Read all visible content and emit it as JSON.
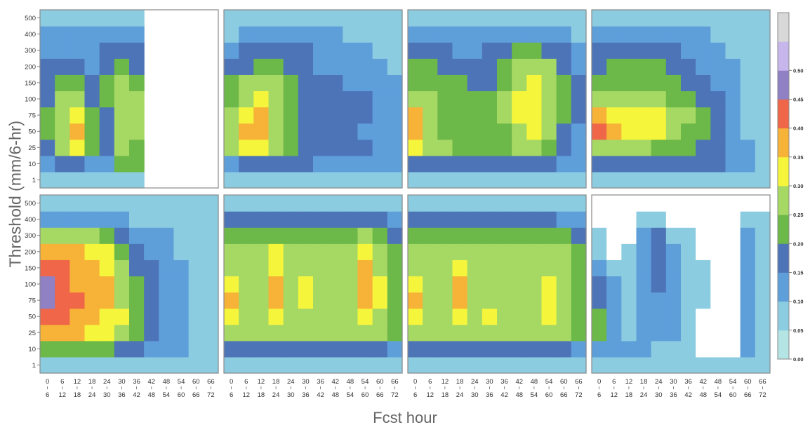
{
  "chart_data": {
    "type": "heatmap",
    "ylabel": "Threshold (mm/6-hr)",
    "xlabel": "Fcst hour",
    "y_ticks": [
      "1",
      "10",
      "25",
      "50",
      "75",
      "100",
      "150",
      "200",
      "300",
      "400",
      "500"
    ],
    "x_ticks_top": [
      "0",
      "6",
      "12",
      "18",
      "24",
      "30",
      "36",
      "42",
      "48",
      "54",
      "60",
      "66"
    ],
    "x_ticks_bottom": [
      "6",
      "12",
      "18",
      "24",
      "30",
      "36",
      "42",
      "48",
      "54",
      "60",
      "66",
      "72"
    ],
    "colorbar": {
      "ticks": [
        "0.00",
        "0.05",
        "0.10",
        "0.15",
        "0.20",
        "0.25",
        "0.30",
        "0.35",
        "0.40",
        "0.45",
        "0.50"
      ],
      "colors": [
        "#b4e4e4",
        "#8ccce0",
        "#5e9fda",
        "#4e74b8",
        "#6cb848",
        "#a6d864",
        "#f5f53c",
        "#f7b238",
        "#ef6648",
        "#9080c4",
        "#c6b6ec",
        "#d8d8d8"
      ]
    },
    "grid": "panels 4 columns x 2 rows",
    "panels": [
      {
        "row": 0,
        "col": 0,
        "cut_from_col": 7,
        "values": [
          [
            1,
            1,
            1,
            1,
            1,
            1,
            1,
            1,
            0,
            0,
            0,
            0
          ],
          [
            2,
            3,
            3,
            2,
            2,
            4,
            4,
            3,
            0,
            0,
            0,
            0
          ],
          [
            3,
            5,
            6,
            4,
            3,
            5,
            4,
            3,
            0,
            0,
            0,
            0
          ],
          [
            4,
            5,
            7,
            4,
            3,
            5,
            5,
            4,
            0,
            0,
            0,
            0
          ],
          [
            4,
            5,
            6,
            4,
            3,
            5,
            5,
            4,
            0,
            0,
            0,
            0
          ],
          [
            3,
            5,
            5,
            3,
            4,
            5,
            5,
            3,
            0,
            0,
            0,
            0
          ],
          [
            3,
            4,
            4,
            3,
            4,
            5,
            4,
            3,
            0,
            0,
            0,
            0
          ],
          [
            3,
            3,
            3,
            2,
            3,
            4,
            3,
            3,
            0,
            0,
            0,
            0
          ],
          [
            2,
            2,
            2,
            2,
            3,
            3,
            3,
            2,
            0,
            0,
            0,
            0
          ],
          [
            2,
            2,
            2,
            2,
            2,
            2,
            2,
            2,
            0,
            0,
            0,
            0
          ],
          [
            1,
            1,
            1,
            1,
            1,
            1,
            1,
            1,
            0,
            0,
            0,
            0
          ]
        ]
      },
      {
        "row": 0,
        "col": 1,
        "values": [
          [
            1,
            1,
            1,
            1,
            1,
            1,
            1,
            1,
            1,
            1,
            1,
            1
          ],
          [
            2,
            3,
            3,
            3,
            3,
            3,
            2,
            2,
            2,
            2,
            2,
            2
          ],
          [
            5,
            6,
            6,
            5,
            4,
            3,
            3,
            3,
            3,
            3,
            2,
            2
          ],
          [
            5,
            7,
            7,
            5,
            4,
            3,
            3,
            3,
            3,
            2,
            2,
            2
          ],
          [
            5,
            6,
            7,
            5,
            4,
            3,
            3,
            3,
            3,
            3,
            2,
            2
          ],
          [
            4,
            5,
            6,
            5,
            4,
            3,
            3,
            3,
            3,
            3,
            2,
            2
          ],
          [
            4,
            5,
            5,
            5,
            4,
            3,
            3,
            3,
            2,
            2,
            2,
            2
          ],
          [
            3,
            3,
            4,
            4,
            3,
            3,
            2,
            2,
            2,
            2,
            2,
            1
          ],
          [
            2,
            3,
            3,
            3,
            3,
            3,
            2,
            2,
            2,
            2,
            1,
            1
          ],
          [
            1,
            2,
            2,
            2,
            2,
            2,
            2,
            2,
            1,
            1,
            1,
            1
          ],
          [
            1,
            1,
            1,
            1,
            1,
            1,
            1,
            1,
            1,
            1,
            1,
            1
          ]
        ]
      },
      {
        "row": 0,
        "col": 2,
        "values": [
          [
            1,
            1,
            1,
            1,
            1,
            1,
            1,
            1,
            1,
            1,
            1,
            1
          ],
          [
            3,
            3,
            3,
            3,
            3,
            3,
            3,
            3,
            3,
            3,
            2,
            2
          ],
          [
            6,
            5,
            5,
            4,
            4,
            4,
            4,
            5,
            5,
            4,
            3,
            2
          ],
          [
            7,
            5,
            4,
            4,
            4,
            4,
            4,
            5,
            6,
            5,
            3,
            2
          ],
          [
            7,
            5,
            4,
            4,
            4,
            4,
            5,
            6,
            6,
            5,
            4,
            3
          ],
          [
            5,
            5,
            4,
            4,
            4,
            4,
            5,
            6,
            6,
            5,
            4,
            3
          ],
          [
            4,
            4,
            4,
            4,
            3,
            3,
            4,
            5,
            6,
            5,
            4,
            3
          ],
          [
            4,
            4,
            3,
            3,
            3,
            3,
            4,
            5,
            5,
            5,
            3,
            2
          ],
          [
            3,
            3,
            3,
            2,
            2,
            3,
            3,
            4,
            4,
            3,
            3,
            2
          ],
          [
            2,
            2,
            2,
            2,
            2,
            2,
            2,
            2,
            2,
            2,
            2,
            1
          ],
          [
            1,
            1,
            1,
            1,
            1,
            1,
            1,
            1,
            1,
            1,
            1,
            1
          ]
        ]
      },
      {
        "row": 0,
        "col": 3,
        "values": [
          [
            1,
            1,
            1,
            1,
            1,
            1,
            1,
            1,
            1,
            1,
            1,
            1
          ],
          [
            3,
            3,
            3,
            3,
            3,
            3,
            3,
            3,
            3,
            2,
            2,
            1
          ],
          [
            5,
            5,
            5,
            5,
            4,
            4,
            4,
            3,
            3,
            2,
            2,
            1
          ],
          [
            8,
            7,
            6,
            6,
            6,
            5,
            4,
            4,
            3,
            2,
            1,
            1
          ],
          [
            7,
            6,
            6,
            6,
            6,
            5,
            5,
            4,
            3,
            2,
            1,
            1
          ],
          [
            5,
            5,
            5,
            5,
            5,
            4,
            4,
            3,
            3,
            2,
            1,
            1
          ],
          [
            4,
            4,
            4,
            4,
            4,
            4,
            3,
            3,
            2,
            2,
            1,
            1
          ],
          [
            3,
            4,
            4,
            4,
            4,
            3,
            3,
            2,
            2,
            2,
            1,
            1
          ],
          [
            3,
            3,
            3,
            3,
            3,
            3,
            2,
            2,
            2,
            1,
            1,
            1
          ],
          [
            2,
            2,
            2,
            2,
            2,
            2,
            2,
            2,
            1,
            1,
            1,
            1
          ],
          [
            1,
            1,
            1,
            1,
            1,
            1,
            1,
            1,
            1,
            1,
            1,
            1
          ]
        ]
      },
      {
        "row": 1,
        "col": 0,
        "values": [
          [
            1,
            1,
            1,
            1,
            1,
            1,
            1,
            1,
            1,
            1,
            1,
            1
          ],
          [
            4,
            4,
            4,
            4,
            4,
            3,
            3,
            2,
            2,
            2,
            1,
            1
          ],
          [
            7,
            7,
            7,
            6,
            6,
            5,
            4,
            3,
            2,
            2,
            1,
            1
          ],
          [
            8,
            8,
            7,
            7,
            6,
            6,
            4,
            3,
            2,
            2,
            1,
            1
          ],
          [
            9,
            8,
            8,
            7,
            7,
            5,
            4,
            3,
            2,
            2,
            1,
            1
          ],
          [
            9,
            8,
            7,
            7,
            7,
            5,
            4,
            3,
            2,
            2,
            1,
            1
          ],
          [
            8,
            8,
            7,
            7,
            6,
            5,
            3,
            3,
            2,
            2,
            1,
            1
          ],
          [
            7,
            7,
            7,
            6,
            6,
            4,
            3,
            2,
            2,
            1,
            1,
            1
          ],
          [
            5,
            5,
            5,
            5,
            4,
            3,
            2,
            2,
            2,
            1,
            1,
            1
          ],
          [
            2,
            2,
            2,
            2,
            2,
            2,
            1,
            1,
            1,
            1,
            1,
            1
          ],
          [
            1,
            1,
            1,
            1,
            1,
            1,
            1,
            1,
            1,
            1,
            1,
            1
          ]
        ]
      },
      {
        "row": 1,
        "col": 1,
        "values": [
          [
            1,
            1,
            1,
            1,
            1,
            1,
            1,
            1,
            1,
            1,
            1,
            1
          ],
          [
            3,
            3,
            3,
            3,
            3,
            3,
            3,
            3,
            3,
            3,
            3,
            2
          ],
          [
            5,
            5,
            5,
            5,
            5,
            5,
            5,
            5,
            5,
            5,
            5,
            4
          ],
          [
            6,
            5,
            5,
            6,
            5,
            5,
            5,
            5,
            5,
            6,
            5,
            4
          ],
          [
            7,
            5,
            5,
            7,
            5,
            6,
            5,
            5,
            5,
            7,
            6,
            4
          ],
          [
            6,
            5,
            5,
            7,
            5,
            6,
            5,
            5,
            5,
            7,
            6,
            4
          ],
          [
            5,
            5,
            5,
            6,
            5,
            5,
            5,
            5,
            5,
            7,
            5,
            4
          ],
          [
            5,
            5,
            5,
            6,
            5,
            5,
            5,
            5,
            5,
            6,
            5,
            4
          ],
          [
            4,
            4,
            4,
            4,
            4,
            4,
            4,
            4,
            4,
            5,
            4,
            3
          ],
          [
            3,
            3,
            3,
            3,
            3,
            3,
            3,
            3,
            3,
            3,
            3,
            2
          ],
          [
            1,
            1,
            1,
            1,
            1,
            1,
            1,
            1,
            1,
            1,
            1,
            1
          ]
        ]
      },
      {
        "row": 1,
        "col": 2,
        "values": [
          [
            1,
            1,
            1,
            1,
            1,
            1,
            1,
            1,
            1,
            1,
            1,
            1
          ],
          [
            3,
            3,
            3,
            3,
            3,
            3,
            3,
            3,
            3,
            3,
            3,
            2
          ],
          [
            5,
            5,
            5,
            5,
            5,
            5,
            5,
            5,
            5,
            5,
            5,
            4
          ],
          [
            6,
            5,
            5,
            6,
            5,
            6,
            5,
            5,
            5,
            6,
            5,
            4
          ],
          [
            7,
            5,
            5,
            7,
            5,
            5,
            5,
            5,
            5,
            6,
            5,
            4
          ],
          [
            6,
            5,
            5,
            7,
            5,
            5,
            5,
            5,
            5,
            6,
            5,
            4
          ],
          [
            5,
            5,
            5,
            6,
            5,
            5,
            5,
            5,
            5,
            5,
            5,
            4
          ],
          [
            5,
            5,
            5,
            5,
            5,
            5,
            5,
            5,
            5,
            5,
            5,
            4
          ],
          [
            4,
            4,
            4,
            4,
            4,
            4,
            4,
            4,
            4,
            4,
            4,
            3
          ],
          [
            3,
            3,
            3,
            3,
            3,
            3,
            3,
            3,
            3,
            3,
            2,
            2
          ],
          [
            1,
            1,
            1,
            1,
            1,
            1,
            1,
            1,
            1,
            1,
            1,
            1
          ]
        ]
      },
      {
        "row": 1,
        "col": 3,
        "values": [
          [
            1,
            1,
            1,
            1,
            1,
            1,
            1,
            1,
            1,
            1,
            1,
            1
          ],
          [
            2,
            2,
            2,
            2,
            1,
            1,
            1,
            0,
            0,
            0,
            2,
            1
          ],
          [
            4,
            2,
            1,
            2,
            2,
            2,
            1,
            0,
            0,
            0,
            2,
            1
          ],
          [
            4,
            2,
            1,
            2,
            2,
            2,
            1,
            0,
            0,
            0,
            2,
            1
          ],
          [
            3,
            2,
            1,
            2,
            2,
            2,
            1,
            1,
            0,
            0,
            2,
            1
          ],
          [
            3,
            2,
            1,
            2,
            3,
            2,
            1,
            1,
            0,
            0,
            2,
            1
          ],
          [
            2,
            1,
            1,
            2,
            3,
            2,
            1,
            1,
            0,
            0,
            2,
            1
          ],
          [
            1,
            0,
            1,
            2,
            3,
            2,
            1,
            0,
            0,
            0,
            2,
            1
          ],
          [
            1,
            0,
            0,
            2,
            3,
            1,
            1,
            0,
            0,
            0,
            2,
            1
          ],
          [
            0,
            0,
            0,
            1,
            1,
            0,
            0,
            0,
            0,
            0,
            1,
            1
          ],
          [
            0,
            0,
            0,
            0,
            0,
            0,
            0,
            0,
            0,
            0,
            0,
            0
          ]
        ]
      }
    ]
  }
}
